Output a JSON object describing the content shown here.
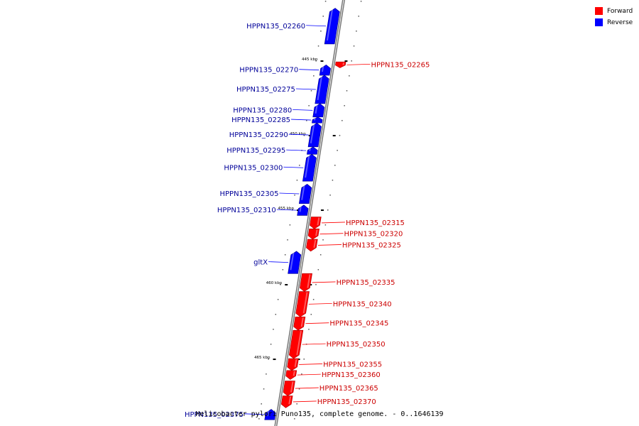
{
  "title": "Helicobacter pylori Puno135, complete genome. - 0..1646139",
  "legend": [
    {
      "label": "Forward",
      "color": "#ff0000"
    },
    {
      "label": "Reverse",
      "color": "#0000ff"
    }
  ],
  "colors": {
    "forward": "#ff0000",
    "reverse": "#0000ff",
    "forward_label": "#cc0000",
    "reverse_label": "#000099"
  },
  "ticks": [
    {
      "label": "445 kbp",
      "kbp": 445
    },
    {
      "label": "450 kbp",
      "kbp": 450
    },
    {
      "label": "455 kbp",
      "kbp": 455
    },
    {
      "label": "460 kbp",
      "kbp": 460
    },
    {
      "label": "465 kbp",
      "kbp": 465
    }
  ],
  "genes": [
    {
      "name": "HPPN135_02260",
      "strand": "reverse",
      "start": 441.5,
      "end": 443.9
    },
    {
      "name": "HPPN135_02270",
      "strand": "reverse",
      "start": 445.3,
      "end": 446.0
    },
    {
      "name": "HPPN135_02265",
      "strand": "forward",
      "start": 445.1,
      "end": 445.5
    },
    {
      "name": "HPPN135_02275",
      "strand": "reverse",
      "start": 446.0,
      "end": 447.9
    },
    {
      "name": "HPPN135_02280",
      "strand": "reverse",
      "start": 447.9,
      "end": 448.8
    },
    {
      "name": "HPPN135_02285",
      "strand": "reverse",
      "start": 448.8,
      "end": 449.2
    },
    {
      "name": "HPPN135_02290",
      "strand": "reverse",
      "start": 449.2,
      "end": 450.8
    },
    {
      "name": "HPPN135_02295",
      "strand": "reverse",
      "start": 450.8,
      "end": 451.3
    },
    {
      "name": "HPPN135_02300",
      "strand": "reverse",
      "start": 451.3,
      "end": 453.1
    },
    {
      "name": "HPPN135_02305",
      "strand": "reverse",
      "start": 453.3,
      "end": 454.6
    },
    {
      "name": "HPPN135_02310",
      "strand": "reverse",
      "start": 454.7,
      "end": 455.4
    },
    {
      "name": "HPPN135_02315",
      "strand": "forward",
      "start": 455.5,
      "end": 456.3
    },
    {
      "name": "HPPN135_02320",
      "strand": "forward",
      "start": 456.3,
      "end": 457.0
    },
    {
      "name": "HPPN135_02325",
      "strand": "forward",
      "start": 457.0,
      "end": 457.8
    },
    {
      "name": "gltX",
      "strand": "reverse",
      "start": 457.8,
      "end": 459.3
    },
    {
      "name": "HPPN135_02335",
      "strand": "forward",
      "start": 459.3,
      "end": 460.5
    },
    {
      "name": "HPPN135_02340",
      "strand": "forward",
      "start": 460.5,
      "end": 462.2
    },
    {
      "name": "HPPN135_02345",
      "strand": "forward",
      "start": 462.2,
      "end": 463.1
    },
    {
      "name": "HPPN135_02350",
      "strand": "forward",
      "start": 463.1,
      "end": 465.0
    },
    {
      "name": "HPPN135_02355",
      "strand": "forward",
      "start": 465.0,
      "end": 465.8
    },
    {
      "name": "HPPN135_02360",
      "strand": "forward",
      "start": 465.8,
      "end": 466.4
    },
    {
      "name": "HPPN135_02365",
      "strand": "forward",
      "start": 466.5,
      "end": 467.5
    },
    {
      "name": "HPPN135_02370",
      "strand": "forward",
      "start": 467.5,
      "end": 468.3
    },
    {
      "name": "HPPN135_02375",
      "strand": "reverse",
      "start": 468.4,
      "end": 469.1
    }
  ]
}
